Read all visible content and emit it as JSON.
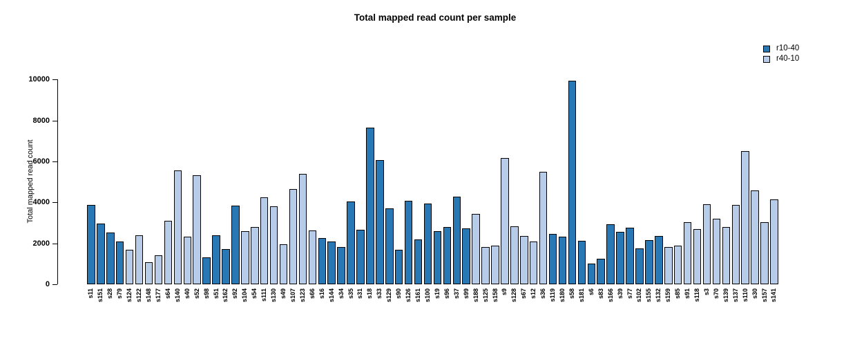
{
  "title": "Total mapped read count per sample",
  "colors": {
    "dark_series": "#2878b5",
    "light_series": "#b6cce8",
    "bar_border": "#000000",
    "background": "#ffffff"
  },
  "legend": {
    "entries": [
      {
        "label": "r10-40",
        "color": "#2878b5"
      },
      {
        "label": "r40-10",
        "color": "#b6cce8"
      }
    ]
  },
  "chart_data": {
    "type": "bar",
    "title": "Total mapped read count per sample",
    "xlabel": "",
    "ylabel": "Total mapped read count",
    "ylim": [
      0,
      10000
    ],
    "yticks": [
      0,
      2000,
      4000,
      6000,
      8000,
      10000
    ],
    "grid": false,
    "legend_position": "top-right",
    "group_colors": {
      "r10-40": "#2878b5",
      "r40-10": "#b6cce8"
    },
    "categories": [
      "s11",
      "s151",
      "s28",
      "s79",
      "s124",
      "s122",
      "s148",
      "s177",
      "s64",
      "s140",
      "s40",
      "s52",
      "s98",
      "s51",
      "s162",
      "s92",
      "s104",
      "s54",
      "s111",
      "s130",
      "s49",
      "s107",
      "s123",
      "s66",
      "s16",
      "s144",
      "s34",
      "s35",
      "s31",
      "s18",
      "s33",
      "s129",
      "s90",
      "s126",
      "s161",
      "s100",
      "s19",
      "s96",
      "s37",
      "s99",
      "s188",
      "s125",
      "s158",
      "s9",
      "s128",
      "s67",
      "s12",
      "s36",
      "s119",
      "s180",
      "s58",
      "s181",
      "s6",
      "s83",
      "s166",
      "s39",
      "s77",
      "s102",
      "s155",
      "s132",
      "s159",
      "s85",
      "s91",
      "s118",
      "s3",
      "s70",
      "s139",
      "s137",
      "s110",
      "s30",
      "s157",
      "s141"
    ],
    "values": [
      3870,
      2960,
      2540,
      2080,
      1700,
      2380,
      1070,
      1420,
      3100,
      5550,
      2320,
      5320,
      1320,
      2400,
      1730,
      3830,
      2600,
      2800,
      4260,
      3800,
      1970,
      4640,
      5380,
      2620,
      2250,
      2080,
      1810,
      4050,
      2650,
      7650,
      6060,
      3700,
      1700,
      4090,
      2200,
      3950,
      2600,
      2810,
      4270,
      2740,
      3440,
      1820,
      1900,
      6160,
      2820,
      2370,
      2090,
      5480,
      2470,
      2320,
      9950,
      2110,
      1000,
      1240,
      2930,
      2570,
      2750,
      1740,
      2160,
      2370,
      1810,
      1900,
      3020,
      2690,
      3920,
      3210,
      2790,
      3890,
      6490,
      4590,
      3020,
      4140
    ],
    "groups": [
      "r10-40",
      "r10-40",
      "r10-40",
      "r10-40",
      "r40-10",
      "r40-10",
      "r40-10",
      "r40-10",
      "r40-10",
      "r40-10",
      "r40-10",
      "r40-10",
      "r10-40",
      "r10-40",
      "r10-40",
      "r10-40",
      "r40-10",
      "r40-10",
      "r40-10",
      "r40-10",
      "r40-10",
      "r40-10",
      "r40-10",
      "r40-10",
      "r10-40",
      "r10-40",
      "r10-40",
      "r10-40",
      "r10-40",
      "r10-40",
      "r10-40",
      "r10-40",
      "r10-40",
      "r10-40",
      "r10-40",
      "r10-40",
      "r10-40",
      "r10-40",
      "r10-40",
      "r10-40",
      "r40-10",
      "r40-10",
      "r40-10",
      "r40-10",
      "r40-10",
      "r40-10",
      "r40-10",
      "r40-10",
      "r10-40",
      "r10-40",
      "r10-40",
      "r10-40",
      "r10-40",
      "r10-40",
      "r10-40",
      "r10-40",
      "r10-40",
      "r10-40",
      "r10-40",
      "r10-40",
      "r40-10",
      "r40-10",
      "r40-10",
      "r40-10",
      "r40-10",
      "r40-10",
      "r40-10",
      "r40-10",
      "r40-10",
      "r40-10",
      "r40-10",
      "r40-10"
    ]
  }
}
